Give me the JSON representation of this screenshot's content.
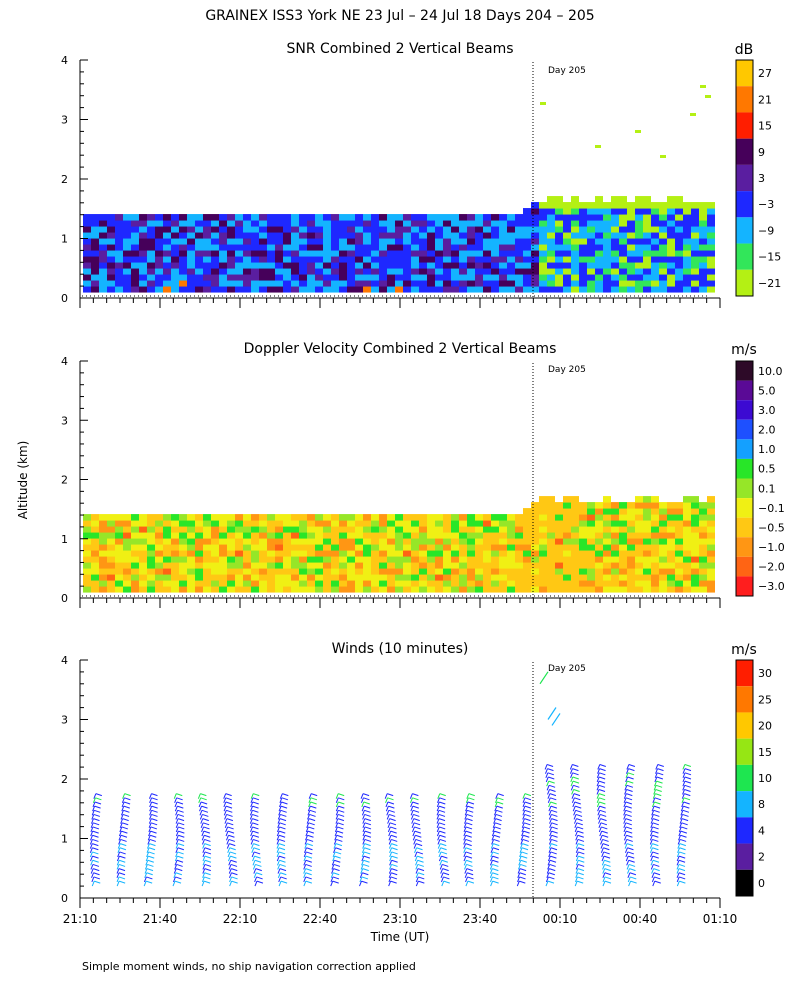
{
  "main_title": "GRAINEX ISS3 York NE  23 Jul – 24 Jul 18 Days 204 – 205",
  "y_axis_label": "Altitude (km)",
  "x_axis_label": "Time (UT)",
  "footnote": "Simple moment winds, no ship navigation correction applied",
  "day_marker_label": "Day 205",
  "chart_data": [
    {
      "type": "heatmap",
      "title": "SNR Combined 2 Vertical Beams",
      "units": "dB",
      "x_ticks": [
        "21:10",
        "21:40",
        "22:10",
        "22:40",
        "23:10",
        "23:40",
        "00:10",
        "00:40",
        "01:10"
      ],
      "y_ticks": [
        "0",
        "1",
        "2",
        "3",
        "4"
      ],
      "ylim": [
        0,
        4
      ],
      "colorbar": {
        "labels": [
          "27",
          "21",
          "15",
          "9",
          "3",
          "−3",
          "−9",
          "−15",
          "−21"
        ],
        "colors": [
          "#ffc800",
          "#ff7800",
          "#ff1e00",
          "#46005a",
          "#5a1ea0",
          "#1e28ff",
          "#14b4ff",
          "#32e65a",
          "#b4f014"
        ]
      }
    },
    {
      "type": "heatmap",
      "title": "Doppler Velocity Combined 2 Vertical Beams",
      "units": "m/s",
      "x_ticks": [
        "21:10",
        "21:40",
        "22:10",
        "22:40",
        "23:10",
        "23:40",
        "00:10",
        "00:40",
        "01:10"
      ],
      "y_ticks": [
        "0",
        "1",
        "2",
        "3",
        "4"
      ],
      "ylim": [
        0,
        4
      ],
      "colorbar": {
        "labels": [
          "10.0",
          "5.0",
          "3.0",
          "2.0",
          "1.0",
          "0.5",
          "0.1",
          "−0.1",
          "−0.5",
          "−1.0",
          "−2.0",
          "−3.0"
        ],
        "colors": [
          "#2d0a28",
          "#5a0a96",
          "#3c0ad2",
          "#1e50ff",
          "#14a0ff",
          "#28e628",
          "#96e628",
          "#f0f014",
          "#ffc814",
          "#ff9614",
          "#ff6414",
          "#ff1e1e"
        ]
      }
    },
    {
      "type": "scatter",
      "title": "Winds (10 minutes)",
      "units": "m/s",
      "x_ticks": [
        "21:10",
        "21:40",
        "22:10",
        "22:40",
        "23:10",
        "23:40",
        "00:10",
        "00:40",
        "01:10"
      ],
      "y_ticks": [
        "0",
        "1",
        "2",
        "3",
        "4"
      ],
      "ylim": [
        0,
        4
      ],
      "colorbar": {
        "labels": [
          "30",
          "25",
          "20",
          "15",
          "10",
          "8",
          "4",
          "2",
          "0"
        ],
        "colors": [
          "#ff1e00",
          "#ff7800",
          "#ffc800",
          "#96e614",
          "#1ee650",
          "#14b4ff",
          "#1e28ff",
          "#5a1ea0",
          "#000000"
        ]
      }
    }
  ]
}
